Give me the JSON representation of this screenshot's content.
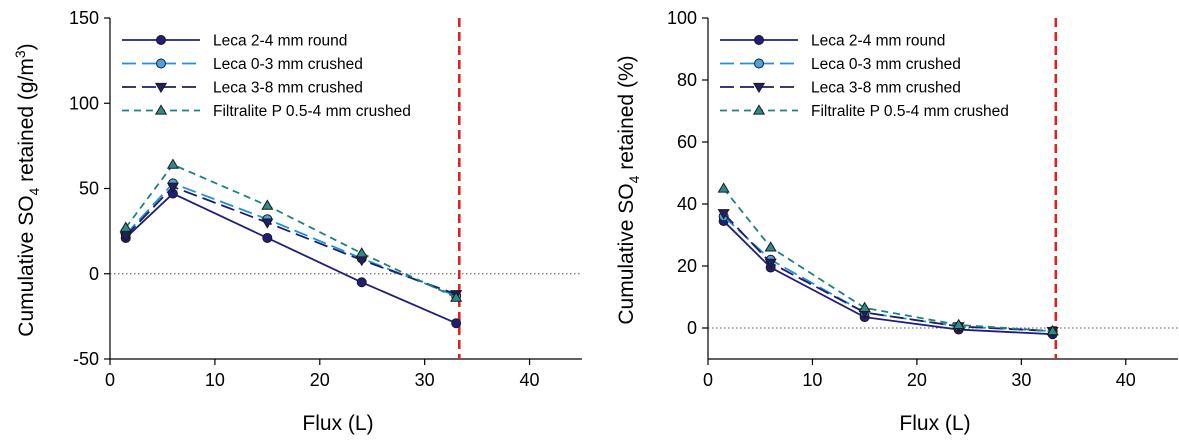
{
  "chart_data": [
    {
      "type": "line",
      "title": "",
      "xlabel": "Flux (L)",
      "ylabel_parts": [
        "Cumulative SO",
        "4",
        " retained (g/m",
        "3",
        ")"
      ],
      "xlim": [
        0,
        45
      ],
      "ylim": [
        -50,
        150
      ],
      "xticks": [
        "0",
        "10",
        "20",
        "30",
        "40"
      ],
      "yticks": [
        "-50",
        "0",
        "50",
        "100",
        "150"
      ],
      "vline_x": 33.3,
      "zero_line": true,
      "legend_position": "top-left",
      "series": [
        {
          "name": "Leca 2-4 mm round",
          "color": "#1f1f7a",
          "dash": "solid",
          "marker": "circle",
          "marker_fill": "#1f1f7a",
          "x": [
            1.5,
            6,
            15,
            24,
            33
          ],
          "y": [
            21,
            47,
            21,
            -5,
            -29
          ]
        },
        {
          "name": "Leca 0-3 mm crushed",
          "color": "#1e90e0",
          "dash": "long",
          "marker": "circle",
          "marker_fill": "#4aa3e0",
          "x": [
            1.5,
            6,
            15,
            24,
            33
          ],
          "y": [
            23,
            53,
            32,
            9,
            -13
          ]
        },
        {
          "name": "Leca 3-8 mm crushed",
          "color": "#1f1f66",
          "dash": "long",
          "marker": "triangle-down",
          "marker_fill": "#1f1f66",
          "x": [
            1.5,
            6,
            15,
            24,
            33
          ],
          "y": [
            22,
            51,
            30,
            8,
            -12
          ]
        },
        {
          "name": "Filtralite P 0.5-4 mm crushed",
          "color": "#1f8080",
          "dash": "short",
          "marker": "triangle-up",
          "marker_fill": "#2e8b8b",
          "x": [
            1.5,
            6,
            15,
            24,
            33
          ],
          "y": [
            27,
            64,
            40,
            12,
            -14
          ]
        }
      ]
    },
    {
      "type": "line",
      "title": "",
      "xlabel": "Flux (L)",
      "ylabel_parts": [
        "Cumulative SO",
        "4",
        " retained (%)",
        "",
        ""
      ],
      "xlim": [
        0,
        45
      ],
      "ylim": [
        -10,
        100
      ],
      "xticks": [
        "0",
        "10",
        "20",
        "30",
        "40"
      ],
      "yticks": [
        "0",
        "20",
        "40",
        "60",
        "80",
        "100"
      ],
      "vline_x": 33.3,
      "zero_line": true,
      "legend_position": "top-left",
      "series": [
        {
          "name": "Leca 2-4 mm round",
          "color": "#1f1f7a",
          "dash": "solid",
          "marker": "circle",
          "marker_fill": "#1f1f7a",
          "x": [
            1.5,
            6,
            15,
            24,
            33
          ],
          "y": [
            34.5,
            19.5,
            3.5,
            -0.5,
            -2
          ]
        },
        {
          "name": "Leca 0-3 mm crushed",
          "color": "#1e90e0",
          "dash": "long",
          "marker": "circle",
          "marker_fill": "#4aa3e0",
          "x": [
            1.5,
            6,
            15,
            24,
            33
          ],
          "y": [
            36,
            22,
            5,
            0.5,
            -1
          ]
        },
        {
          "name": "Leca 3-8 mm crushed",
          "color": "#1f1f66",
          "dash": "long",
          "marker": "triangle-down",
          "marker_fill": "#1f1f66",
          "x": [
            1.5,
            6,
            15,
            24,
            33
          ],
          "y": [
            37,
            21,
            5,
            0.5,
            -1
          ]
        },
        {
          "name": "Filtralite P 0.5-4 mm crushed",
          "color": "#1f8080",
          "dash": "short",
          "marker": "triangle-up",
          "marker_fill": "#2e8b8b",
          "x": [
            1.5,
            6,
            15,
            24,
            33
          ],
          "y": [
            45,
            26,
            6.5,
            1,
            -1
          ]
        }
      ]
    }
  ],
  "colors": {
    "vline": "#dd2222",
    "axis": "#000000",
    "zero_line": "#555555"
  }
}
